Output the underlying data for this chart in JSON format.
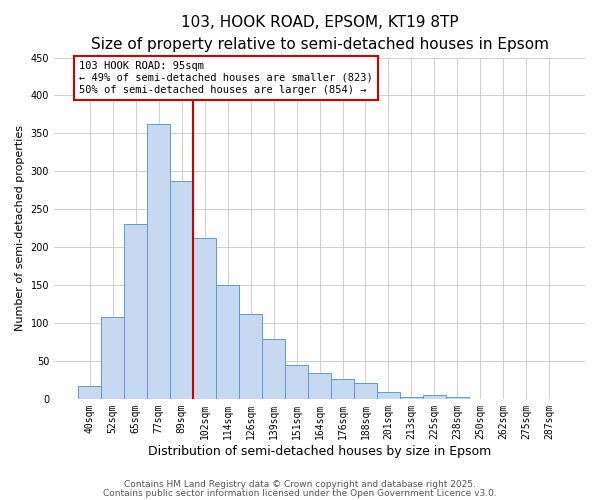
{
  "title": "103, HOOK ROAD, EPSOM, KT19 8TP",
  "subtitle": "Size of property relative to semi-detached houses in Epsom",
  "xlabel": "Distribution of semi-detached houses by size in Epsom",
  "ylabel": "Number of semi-detached properties",
  "bar_labels": [
    "40sqm",
    "52sqm",
    "65sqm",
    "77sqm",
    "89sqm",
    "102sqm",
    "114sqm",
    "126sqm",
    "139sqm",
    "151sqm",
    "164sqm",
    "176sqm",
    "188sqm",
    "201sqm",
    "213sqm",
    "225sqm",
    "238sqm",
    "250sqm",
    "262sqm",
    "275sqm",
    "287sqm"
  ],
  "bar_values": [
    17,
    108,
    230,
    362,
    287,
    212,
    150,
    112,
    79,
    45,
    34,
    26,
    21,
    9,
    3,
    5,
    2,
    0,
    0,
    0,
    0
  ],
  "bar_color": "#c6d9f1",
  "bar_edge_color": "#5b9bd5",
  "grid_color": "#c8c8c8",
  "vline_color": "#cc0000",
  "annotation_title": "103 HOOK ROAD: 95sqm",
  "annotation_line1": "← 49% of semi-detached houses are smaller (823)",
  "annotation_line2": "50% of semi-detached houses are larger (854) →",
  "annotation_box_color": "#ffffff",
  "annotation_box_edge": "#cc0000",
  "ylim": [
    0,
    450
  ],
  "yticks": [
    0,
    50,
    100,
    150,
    200,
    250,
    300,
    350,
    400,
    450
  ],
  "footer1": "Contains HM Land Registry data © Crown copyright and database right 2025.",
  "footer2": "Contains public sector information licensed under the Open Government Licence v3.0.",
  "title_fontsize": 11,
  "subtitle_fontsize": 9,
  "xlabel_fontsize": 9,
  "ylabel_fontsize": 8,
  "tick_fontsize": 7,
  "annotation_fontsize": 7.5,
  "footer_fontsize": 6.5
}
